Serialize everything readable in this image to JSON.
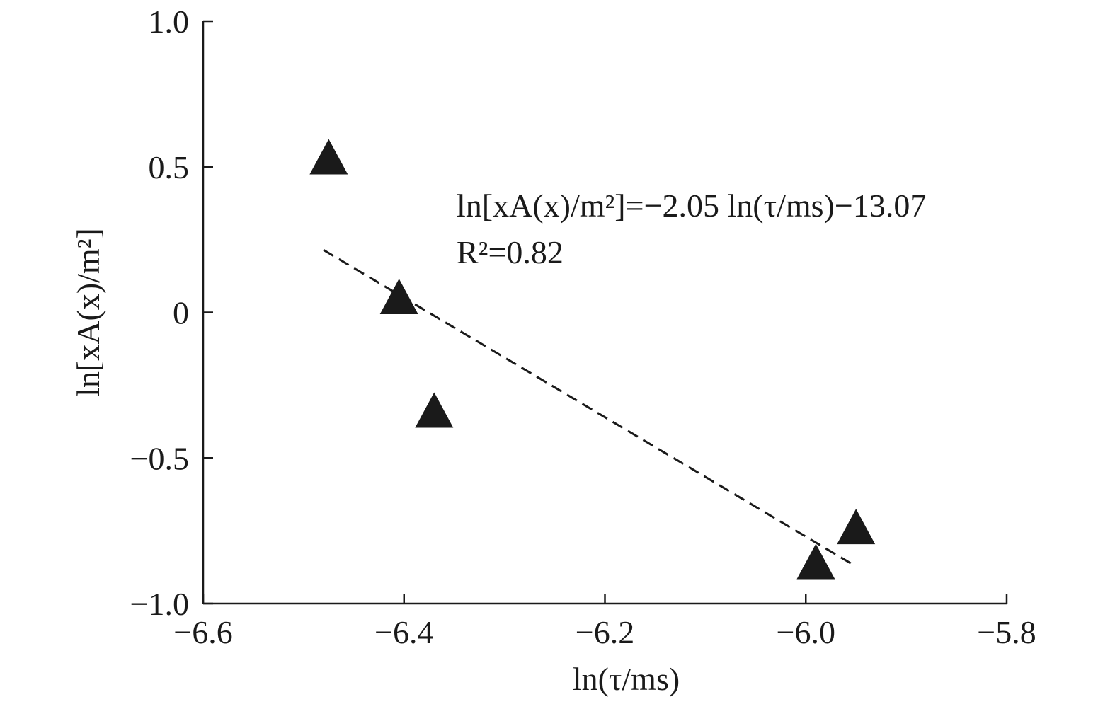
{
  "chart_data": {
    "type": "scatter",
    "title": "",
    "xlabel": "ln(τ/ms)",
    "ylabel": "ln[xA(x)/m²]",
    "xlim": [
      -6.6,
      -5.8
    ],
    "ylim": [
      -1.0,
      1.0
    ],
    "x_ticks": [
      -6.6,
      -6.4,
      -6.2,
      -6.0,
      -5.8
    ],
    "y_ticks": [
      -1.0,
      -0.5,
      0,
      0.5,
      1.0
    ],
    "x_tick_labels": [
      "−6.6",
      "−6.4",
      "−6.2",
      "−6.0",
      "−5.8"
    ],
    "y_tick_labels": [
      "−1.0",
      "−0.5",
      "0",
      "0.5",
      "1.0"
    ],
    "grid": false,
    "legend": "none",
    "marker": "filled-triangle",
    "marker_color": "#1a1a1a",
    "points": [
      {
        "x": -6.475,
        "y": 0.52
      },
      {
        "x": -6.405,
        "y": 0.04
      },
      {
        "x": -6.37,
        "y": -0.35
      },
      {
        "x": -5.99,
        "y": -0.87
      },
      {
        "x": -5.95,
        "y": -0.75
      }
    ],
    "fit": {
      "style": "dashed",
      "slope": -2.05,
      "intercept": -13.07,
      "x_range": [
        -6.48,
        -5.95
      ],
      "equation_label": "ln[xA(x)/m²]=−2.05 ln(τ/ms)−13.07",
      "r2_label": "R²=0.82"
    }
  }
}
